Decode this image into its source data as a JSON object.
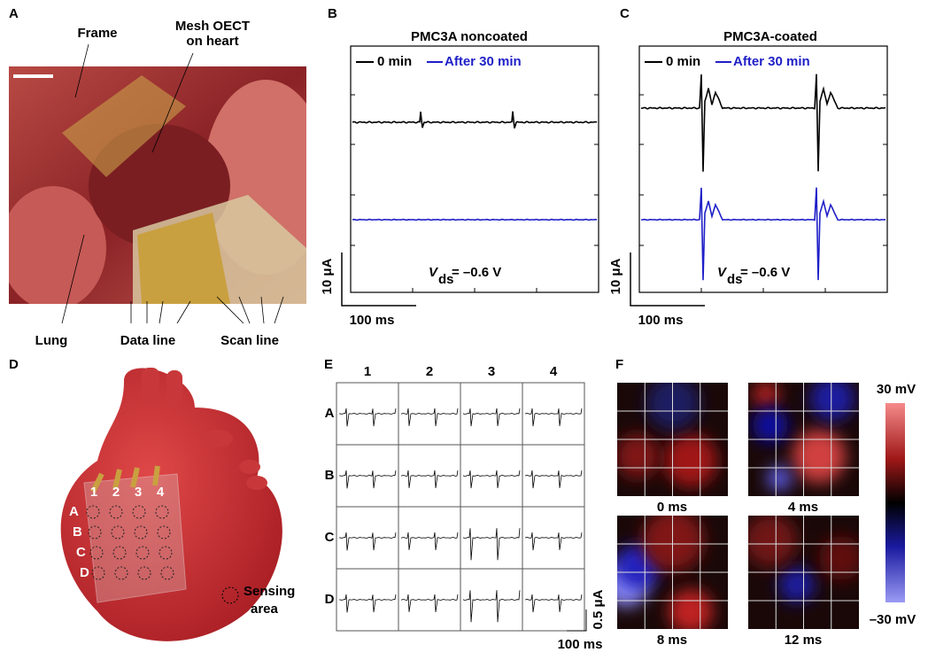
{
  "panels": {
    "a": {
      "label": "A",
      "frame": "Frame",
      "mesh": [
        "Mesh OECT",
        "on heart"
      ],
      "lung": "Lung",
      "data_line": "Data line",
      "scan_line": "Scan line"
    },
    "b": {
      "label": "B",
      "title": "PMC3A noncoated",
      "legend": [
        "0 min",
        "After 30 min"
      ],
      "vds": "V",
      "vds_sub": "ds",
      "vds_value": "= –0.6 V",
      "y_scale": "10 μA",
      "x_scale": "100 ms"
    },
    "c": {
      "label": "C",
      "title": "PMC3A-coated",
      "legend": [
        "0 min",
        "After 30 min"
      ],
      "vds": "V",
      "vds_sub": "ds",
      "vds_value": "= –0.6 V",
      "y_scale": "10 μA",
      "x_scale": "100 ms"
    },
    "d": {
      "label": "D",
      "rows": [
        "A",
        "B",
        "C",
        "D"
      ],
      "columns": [
        "1",
        "2",
        "3",
        "4"
      ],
      "sensing": [
        "Sensing",
        "area"
      ]
    },
    "e": {
      "label": "E",
      "columns": [
        "1",
        "2",
        "3",
        "4"
      ],
      "rows": [
        "A",
        "B",
        "C",
        "D"
      ],
      "y_scale": "0.5 μA",
      "x_scale": "100 ms"
    },
    "f": {
      "label": "F",
      "maps": [
        "0 ms",
        "4 ms",
        "8 ms",
        "12 ms"
      ],
      "colorbar_max": "30 mV",
      "colorbar_min": "–30 mV"
    }
  }
}
